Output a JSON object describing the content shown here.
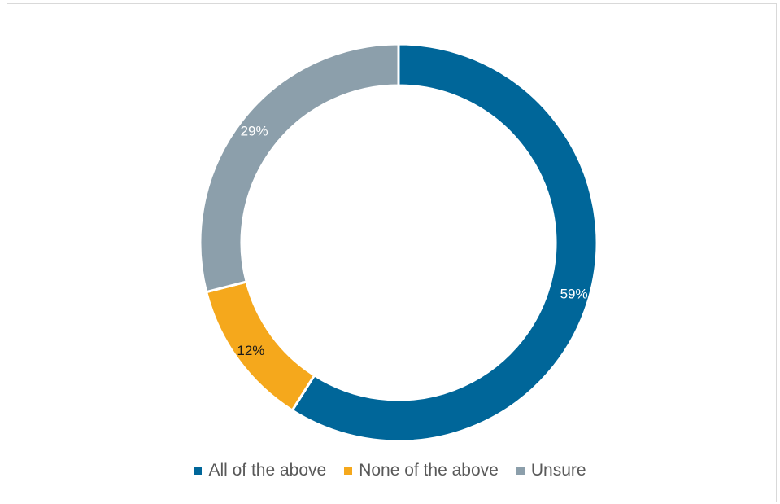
{
  "chart_data": {
    "type": "pie",
    "donut": true,
    "categories": [
      "All of the above",
      "None of the above",
      "Unsure"
    ],
    "values": [
      59,
      12,
      29
    ],
    "labels": [
      "59%",
      "12%",
      "29%"
    ],
    "colors": [
      "#006699",
      "#F5A81C",
      "#8C9FAB"
    ],
    "label_colors": [
      "#FFFFFF",
      "#1a1a1a",
      "#FFFFFF"
    ],
    "legend_position": "bottom",
    "title": ""
  }
}
